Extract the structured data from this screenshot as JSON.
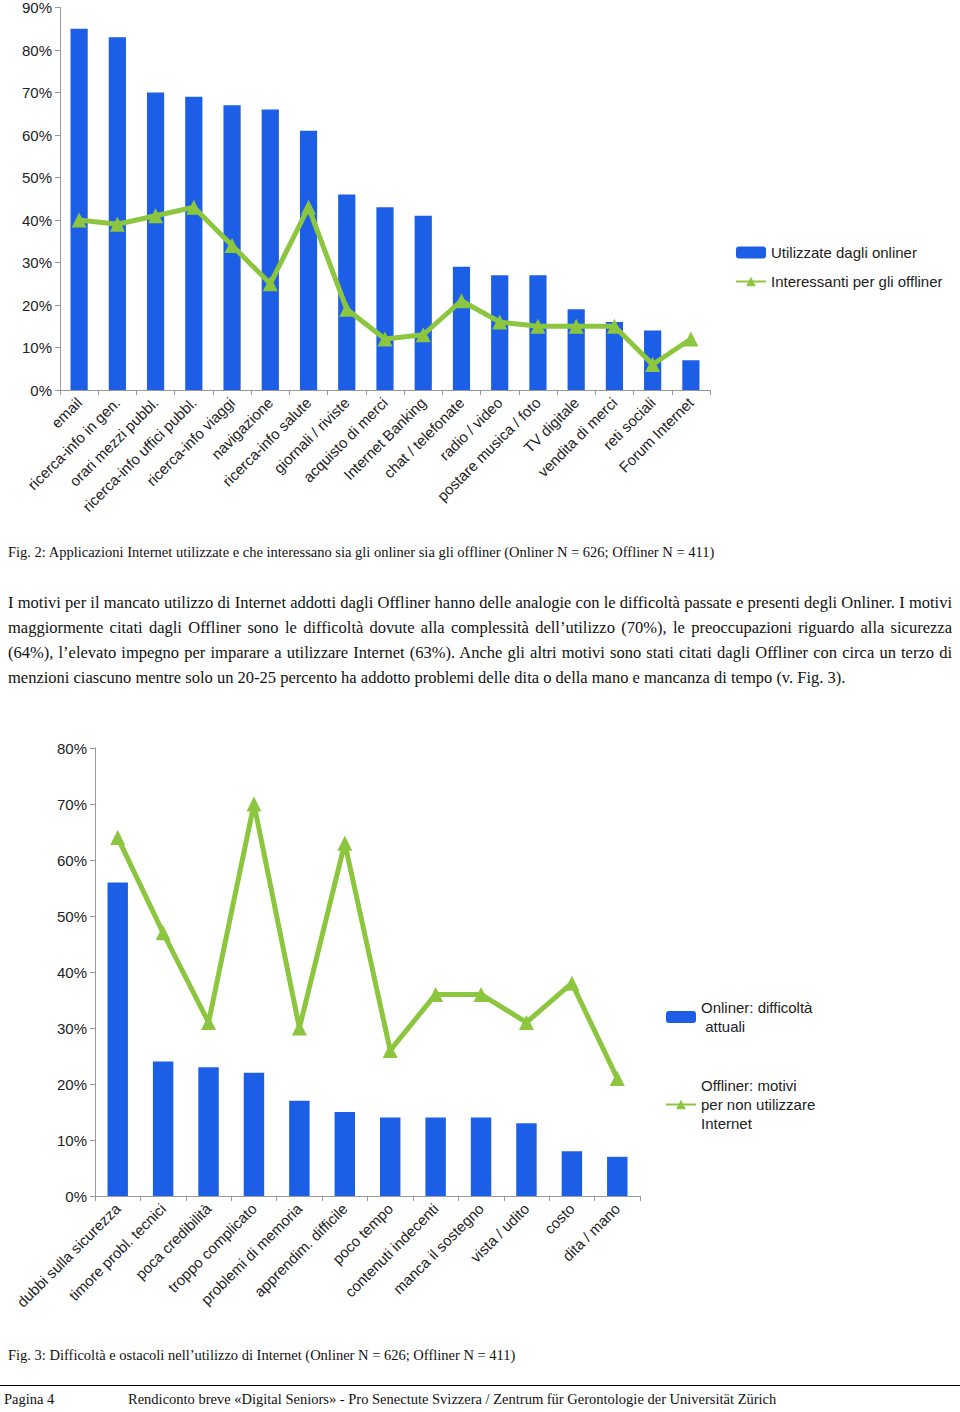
{
  "chart_data": [
    {
      "type": "bar",
      "categories": [
        "email",
        "ricerca-info in gen.",
        "orari mezzi pubbl.",
        "ricerca-info uffici pubbl.",
        "ricerca-info viaggi",
        "navigazione",
        "ricerca-info salute",
        "giornali / riviste",
        "acquisto di merci",
        "Internet Banking",
        "chat / telefonate",
        "radio / video",
        "postare musica / foto",
        "TV digitale",
        "vendita di merci",
        "reti sociali",
        "Forum Internet"
      ],
      "series": [
        {
          "name": "Utilizzate dagli onliner",
          "type": "bar",
          "color": "#1c5fe6",
          "values": [
            85,
            83,
            70,
            69,
            67,
            66,
            61,
            46,
            43,
            41,
            29,
            27,
            27,
            19,
            16,
            14,
            7
          ]
        },
        {
          "name": "Interessanti per gli offliner",
          "type": "line",
          "color": "#8cc63f",
          "marker": "triangle",
          "values": [
            40,
            39,
            41,
            43,
            34,
            25,
            43,
            19,
            12,
            13,
            21,
            16,
            15,
            15,
            15,
            6,
            12
          ]
        }
      ],
      "ylim": [
        0,
        90
      ],
      "yticks": [
        {
          "value": 0,
          "label": "0%"
        },
        {
          "value": 10,
          "label": "10%"
        },
        {
          "value": 20,
          "label": "20%"
        },
        {
          "value": 30,
          "label": "30%"
        },
        {
          "value": 40,
          "label": "40%"
        },
        {
          "value": 50,
          "label": "50%"
        },
        {
          "value": 60,
          "label": "60%"
        },
        {
          "value": 70,
          "label": "70%"
        },
        {
          "value": 80,
          "label": "80%"
        },
        {
          "value": 90,
          "label": "90%"
        }
      ],
      "grid": false,
      "legend": "right"
    },
    {
      "type": "bar",
      "categories": [
        "dubbi sulla sicurezza",
        "timore probl. tecnici",
        "poca credibilità",
        "troppo complicato",
        "problemi di memoria",
        "apprendim. difficile",
        "poco tempo",
        "contenuti indecenti",
        "manca il sostegno",
        "vista / udito",
        "costo",
        "dita / mano"
      ],
      "series": [
        {
          "name": "Onliner: difficoltà attuali",
          "type": "bar",
          "color": "#1c5fe6",
          "values": [
            56,
            24,
            23,
            22,
            17,
            15,
            14,
            14,
            14,
            13,
            8,
            7
          ]
        },
        {
          "name": "Offliner: motivi per non utilizzare Internet",
          "type": "line",
          "color": "#8cc63f",
          "marker": "triangle",
          "values": [
            64,
            47,
            31,
            70,
            30,
            63,
            26,
            36,
            36,
            31,
            38,
            21
          ]
        }
      ],
      "ylim": [
        0,
        80
      ],
      "yticks": [
        {
          "value": 0,
          "label": "0%"
        },
        {
          "value": 10,
          "label": "10%"
        },
        {
          "value": 20,
          "label": "20%"
        },
        {
          "value": 30,
          "label": "30%"
        },
        {
          "value": 40,
          "label": "40%"
        },
        {
          "value": 50,
          "label": "50%"
        },
        {
          "value": 60,
          "label": "60%"
        },
        {
          "value": 70,
          "label": "70%"
        },
        {
          "value": 80,
          "label": "80%"
        }
      ],
      "grid": false,
      "legend": "right"
    }
  ],
  "document": {
    "captions": [
      "Fig. 2: Applicazioni Internet utilizzate e che interessano sia gli onliner sia gli offliner (Onliner N = 626; Offliner N = 411)",
      "Fig. 3: Difficoltà e ostacoli nell’utilizzo di Internet (Onliner N = 626; Offliner N = 411)"
    ],
    "paragraph": "I motivi per il mancato utilizzo di Internet addotti dagli Offliner hanno delle analogie con le difficoltà passate e presenti degli Onliner. I motivi maggiormente citati dagli Offliner sono le difficoltà dovute alla complessità dell’utilizzo (70%), le preoccupazioni riguardo alla sicurezza (64%), l’elevato impegno per imparare a utilizzare Internet (63%). Anche gli altri motivi sono stati citati dagli Offliner con circa un terzo di menzioni ciascuno mentre solo un 20-25 percento ha addotto problemi delle dita o della mano e mancanza di tempo (v. Fig. 3).",
    "footer": {
      "page": "Pagina 4",
      "text": "Rendiconto breve «Digital Seniors» - Pro Senectute Svizzera / Zentrum für Gerontologie der Universität Zürich"
    }
  }
}
